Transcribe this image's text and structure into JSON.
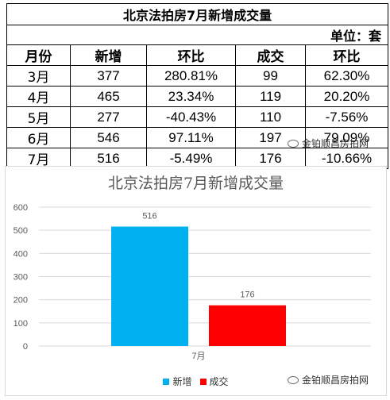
{
  "table": {
    "title": "北京法拍房7月新增成交量",
    "unit": "单位：套",
    "headers": [
      "月份",
      "新增",
      "环比",
      "成交",
      "环比"
    ],
    "rows": [
      [
        "3月",
        "377",
        "280.81%",
        "99",
        "62.30%"
      ],
      [
        "4月",
        "465",
        "23.34%",
        "119",
        "20.20%"
      ],
      [
        "5月",
        "277",
        "-40.43%",
        "110",
        "-7.56%"
      ],
      [
        "6月",
        "546",
        "97.11%",
        "197",
        "79.09%"
      ],
      [
        "7月",
        "516",
        "-5.49%",
        "176",
        "-10.66%"
      ]
    ]
  },
  "watermark": {
    "text": "金铂顺昌房拍网"
  },
  "chart_data": {
    "type": "bar",
    "title": "北京法拍房7月新增成交量",
    "categories": [
      "7月"
    ],
    "series": [
      {
        "name": "新增",
        "values": [
          516
        ],
        "color": "#00b0f0"
      },
      {
        "name": "成交",
        "values": [
          176
        ],
        "color": "#ff0000"
      }
    ],
    "data_labels": [
      "516",
      "176"
    ],
    "ylim": [
      0,
      600
    ],
    "yticks": [
      0,
      100,
      200,
      300,
      400,
      500,
      600
    ],
    "grid": true,
    "legend": "bottom"
  }
}
